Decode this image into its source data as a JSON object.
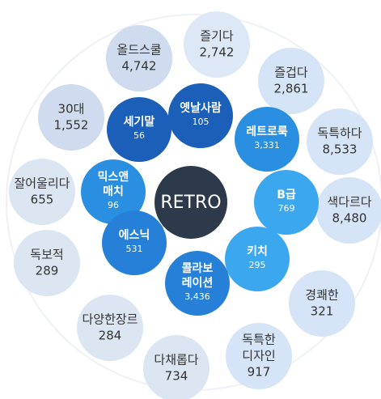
{
  "center": "RETRO",
  "inner_nodes": [
    {
      "label": [
        "옛날사람"
      ],
      "count": "105"
    },
    {
      "label": [
        "세기말"
      ],
      "count": "56"
    },
    {
      "label": [
        "레트로룩"
      ],
      "count": "3,331"
    },
    {
      "label": [
        "믹스앤",
        "매치"
      ],
      "count": "96"
    },
    {
      "label": [
        "B급"
      ],
      "count": "769"
    },
    {
      "label": [
        "에스닉"
      ],
      "count": "531"
    },
    {
      "label": [
        "키치"
      ],
      "count": "295"
    },
    {
      "label": [
        "콜라보",
        "레이션"
      ],
      "count": "3,436"
    }
  ],
  "outer_nodes": [
    {
      "label": [
        "올드스쿨"
      ],
      "count": "4,742"
    },
    {
      "label": [
        "즐기다"
      ],
      "count": "2,742"
    },
    {
      "label": [
        "즐겁다"
      ],
      "count": "2,861"
    },
    {
      "label": [
        "독특하다"
      ],
      "count": "8,533"
    },
    {
      "label": [
        "색다르다"
      ],
      "count": "8,480"
    },
    {
      "label": [
        "경쾌한"
      ],
      "count": "321"
    },
    {
      "label": [
        "독특한",
        "디자인"
      ],
      "count": "917"
    },
    {
      "label": [
        "다채롭다"
      ],
      "count": "734"
    },
    {
      "label": [
        "다양한장르"
      ],
      "count": "284"
    },
    {
      "label": [
        "독보적"
      ],
      "count": "289"
    },
    {
      "label": [
        "잘어울리다"
      ],
      "count": "655"
    },
    {
      "label": [
        "30대"
      ],
      "count": "1,552"
    }
  ]
}
